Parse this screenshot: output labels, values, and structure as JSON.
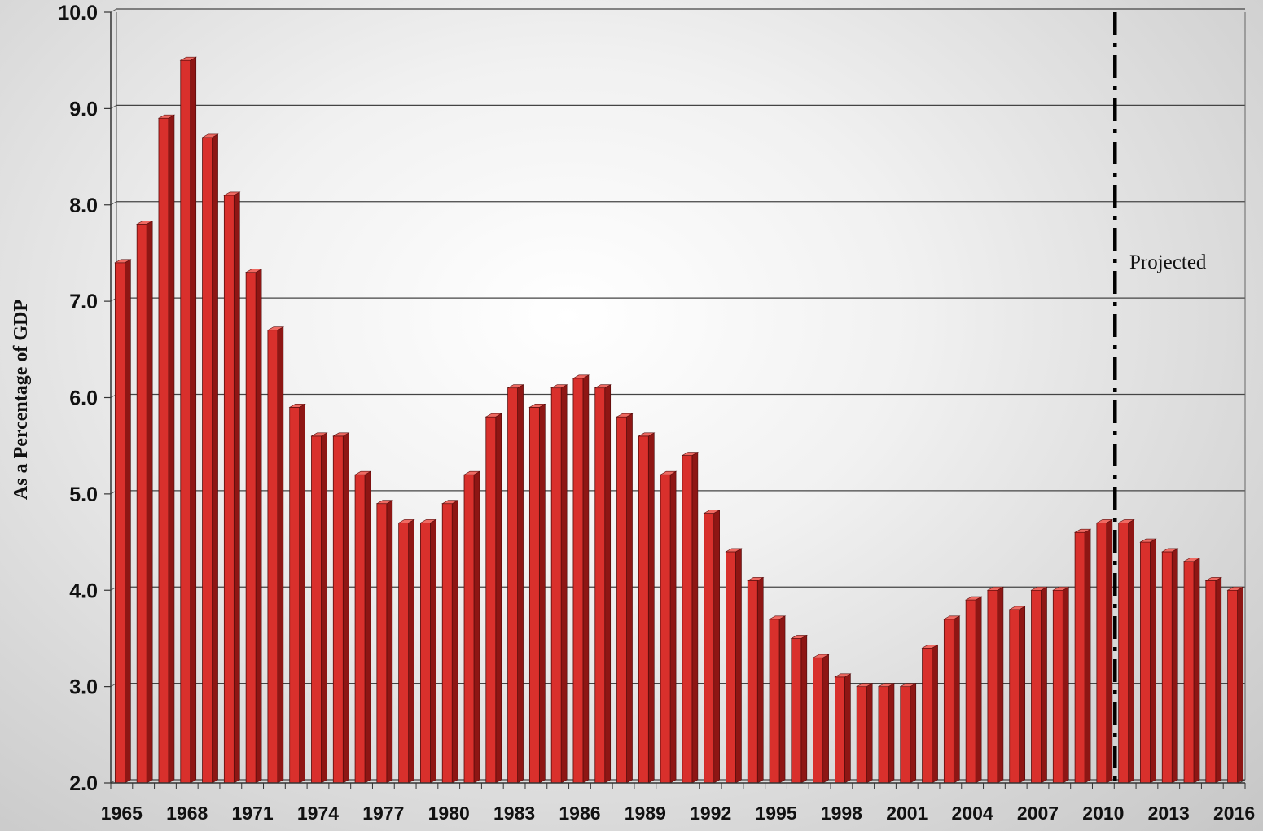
{
  "chart_data": {
    "type": "bar",
    "ylabel": "As a Percentage of GDP",
    "ylim": [
      2.0,
      10.0
    ],
    "ytick_labels": [
      "2.0",
      "3.0",
      "4.0",
      "5.0",
      "6.0",
      "7.0",
      "8.0",
      "9.0",
      "10.0"
    ],
    "grid": true,
    "categories": [
      1965,
      1966,
      1967,
      1968,
      1969,
      1970,
      1971,
      1972,
      1973,
      1974,
      1975,
      1976,
      1977,
      1978,
      1979,
      1980,
      1981,
      1982,
      1983,
      1984,
      1985,
      1986,
      1987,
      1988,
      1989,
      1990,
      1991,
      1992,
      1993,
      1994,
      1995,
      1996,
      1997,
      1998,
      1999,
      2000,
      2001,
      2002,
      2003,
      2004,
      2005,
      2006,
      2007,
      2008,
      2009,
      2010,
      2011,
      2012,
      2013,
      2014,
      2015,
      2016
    ],
    "x_tick_labels": [
      "1965",
      "1968",
      "1971",
      "1974",
      "1977",
      "1980",
      "1983",
      "1986",
      "1989",
      "1992",
      "1995",
      "1998",
      "2001",
      "2004",
      "2007",
      "2010",
      "2013",
      "2016"
    ],
    "values": [
      7.4,
      7.8,
      8.9,
      9.5,
      8.7,
      8.1,
      7.3,
      6.7,
      5.9,
      5.6,
      5.6,
      5.2,
      4.9,
      4.7,
      4.7,
      4.9,
      5.2,
      5.8,
      6.1,
      5.9,
      6.1,
      6.2,
      6.1,
      5.8,
      5.6,
      5.2,
      5.4,
      4.8,
      4.4,
      4.1,
      3.7,
      3.5,
      3.3,
      3.1,
      3.0,
      3.0,
      3.0,
      3.4,
      3.7,
      3.9,
      4.0,
      3.8,
      4.0,
      4.0,
      4.6,
      4.7,
      4.7,
      4.5,
      4.4,
      4.3,
      4.1,
      4.0
    ],
    "bar_color": "#d9302c",
    "projection_divider": {
      "after_category": 2010,
      "label": "Projected"
    }
  }
}
